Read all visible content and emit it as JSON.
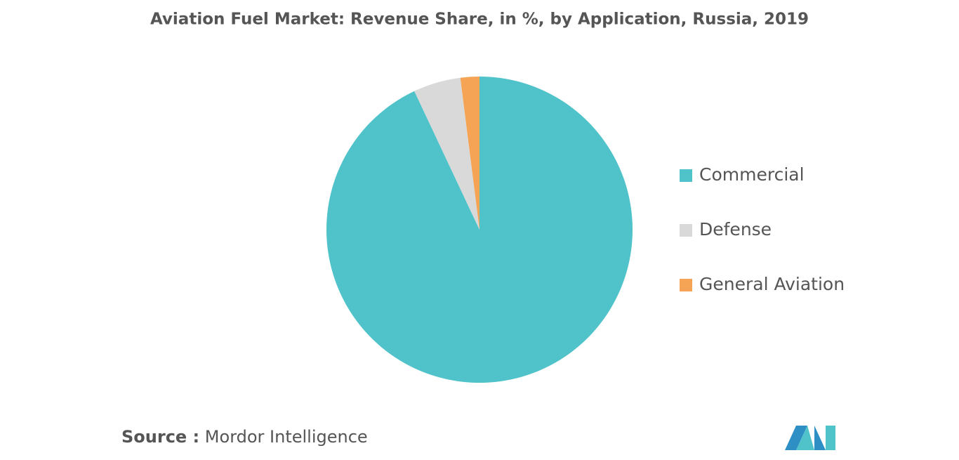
{
  "chart_data": {
    "type": "pie",
    "title": "Aviation Fuel Market: Revenue Share, in %, by Application, Russia, 2019",
    "categories": [
      "Commercial",
      "Defense",
      "General Aviation"
    ],
    "values": [
      93,
      5,
      2
    ],
    "colors": [
      "#4fc3c9",
      "#d9d9d9",
      "#f5a455"
    ],
    "legend": "right",
    "source_label": "Source :",
    "source": "Mordor Intelligence"
  }
}
